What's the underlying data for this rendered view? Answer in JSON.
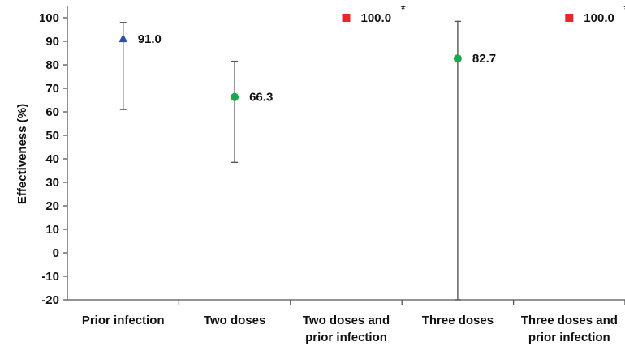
{
  "chart_data": {
    "type": "scatter",
    "ylabel": "Effectiveness (%)",
    "ylim": [
      -20,
      100
    ],
    "yticks": [
      100,
      90,
      80,
      70,
      60,
      50,
      40,
      30,
      20,
      10,
      0,
      -10,
      -20
    ],
    "grid": false,
    "legend": "none",
    "categories": [
      [
        "Prior infection"
      ],
      [
        "Two doses"
      ],
      [
        "Two doses and",
        "prior infection"
      ],
      [
        "Three doses"
      ],
      [
        "Three doses and",
        "prior infection"
      ]
    ],
    "points": [
      {
        "value": 91.0,
        "label": "91.0",
        "ci_low": 61,
        "ci_high": 98,
        "marker": "triangle",
        "color": "#2e4fa3",
        "note": ""
      },
      {
        "value": 66.3,
        "label": "66.3",
        "ci_low": 38.5,
        "ci_high": 81.5,
        "marker": "circle",
        "color": "#1aa84b",
        "note": ""
      },
      {
        "value": 100.0,
        "label": "100.0",
        "ci_low": null,
        "ci_high": null,
        "marker": "square",
        "color": "#e8262b",
        "note": "*"
      },
      {
        "value": 82.7,
        "label": "82.7",
        "ci_low": -20,
        "ci_high": 98.5,
        "marker": "circle",
        "color": "#1aa84b",
        "note": ""
      },
      {
        "value": 100.0,
        "label": "100.0",
        "ci_low": null,
        "ci_high": null,
        "marker": "square",
        "color": "#e8262b",
        "note": "*"
      }
    ],
    "colors": {
      "axis": "#555555",
      "errorbar": "#555555"
    }
  }
}
